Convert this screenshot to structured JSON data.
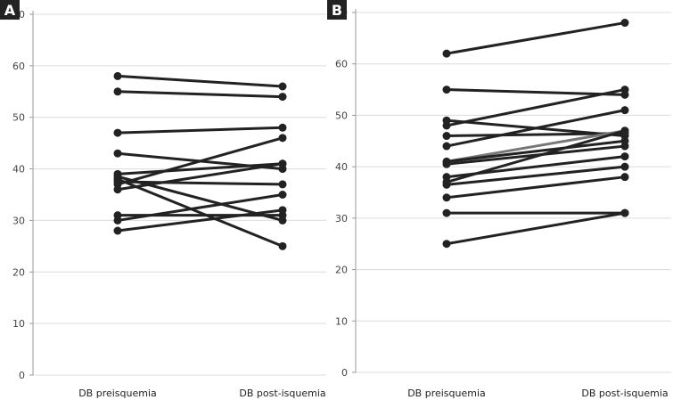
{
  "chart_data": [
    {
      "panel": "A",
      "type": "line",
      "categories": [
        "DB preisquemia",
        "DB post-isquemia"
      ],
      "y_ticks": [
        0,
        10,
        20,
        30,
        40,
        50,
        60,
        70
      ],
      "ylim": [
        0,
        70
      ],
      "series": [
        {
          "values": [
            58,
            56
          ],
          "color": "#222222"
        },
        {
          "values": [
            55,
            54
          ],
          "color": "#222222"
        },
        {
          "values": [
            47,
            48
          ],
          "color": "#222222"
        },
        {
          "values": [
            43,
            40
          ],
          "color": "#222222"
        },
        {
          "values": [
            39,
            41
          ],
          "color": "#222222"
        },
        {
          "values": [
            38.5,
            30
          ],
          "color": "#222222"
        },
        {
          "values": [
            38,
            25
          ],
          "color": "#222222"
        },
        {
          "values": [
            37.5,
            37
          ],
          "color": "#222222"
        },
        {
          "values": [
            37,
            46
          ],
          "color": "#222222"
        },
        {
          "values": [
            36,
            41
          ],
          "color": "#222222"
        },
        {
          "values": [
            31,
            31
          ],
          "color": "#222222"
        },
        {
          "values": [
            30,
            35
          ],
          "color": "#222222"
        },
        {
          "values": [
            28,
            32
          ],
          "color": "#222222"
        }
      ]
    },
    {
      "panel": "B",
      "type": "line",
      "categories": [
        "DB preisquemia",
        "DB post-isquemia"
      ],
      "y_ticks": [
        0,
        10,
        20,
        30,
        40,
        50,
        60,
        70
      ],
      "ylim": [
        0,
        70
      ],
      "series": [
        {
          "values": [
            62,
            68
          ],
          "color": "#222222"
        },
        {
          "values": [
            55,
            54
          ],
          "color": "#222222"
        },
        {
          "values": [
            49,
            46
          ],
          "color": "#222222"
        },
        {
          "values": [
            48,
            55
          ],
          "color": "#222222"
        },
        {
          "values": [
            46,
            46.5
          ],
          "color": "#222222"
        },
        {
          "values": [
            44,
            51
          ],
          "color": "#222222"
        },
        {
          "values": [
            41,
            47
          ],
          "color": "#777777"
        },
        {
          "values": [
            41,
            45
          ],
          "color": "#222222"
        },
        {
          "values": [
            40.5,
            44
          ],
          "color": "#222222"
        },
        {
          "values": [
            38,
            42
          ],
          "color": "#222222"
        },
        {
          "values": [
            37,
            47
          ],
          "color": "#222222"
        },
        {
          "values": [
            36.5,
            40
          ],
          "color": "#222222"
        },
        {
          "values": [
            34,
            38
          ],
          "color": "#222222"
        },
        {
          "values": [
            31,
            31
          ],
          "color": "#222222"
        },
        {
          "values": [
            25,
            31
          ],
          "color": "#222222"
        }
      ]
    }
  ]
}
